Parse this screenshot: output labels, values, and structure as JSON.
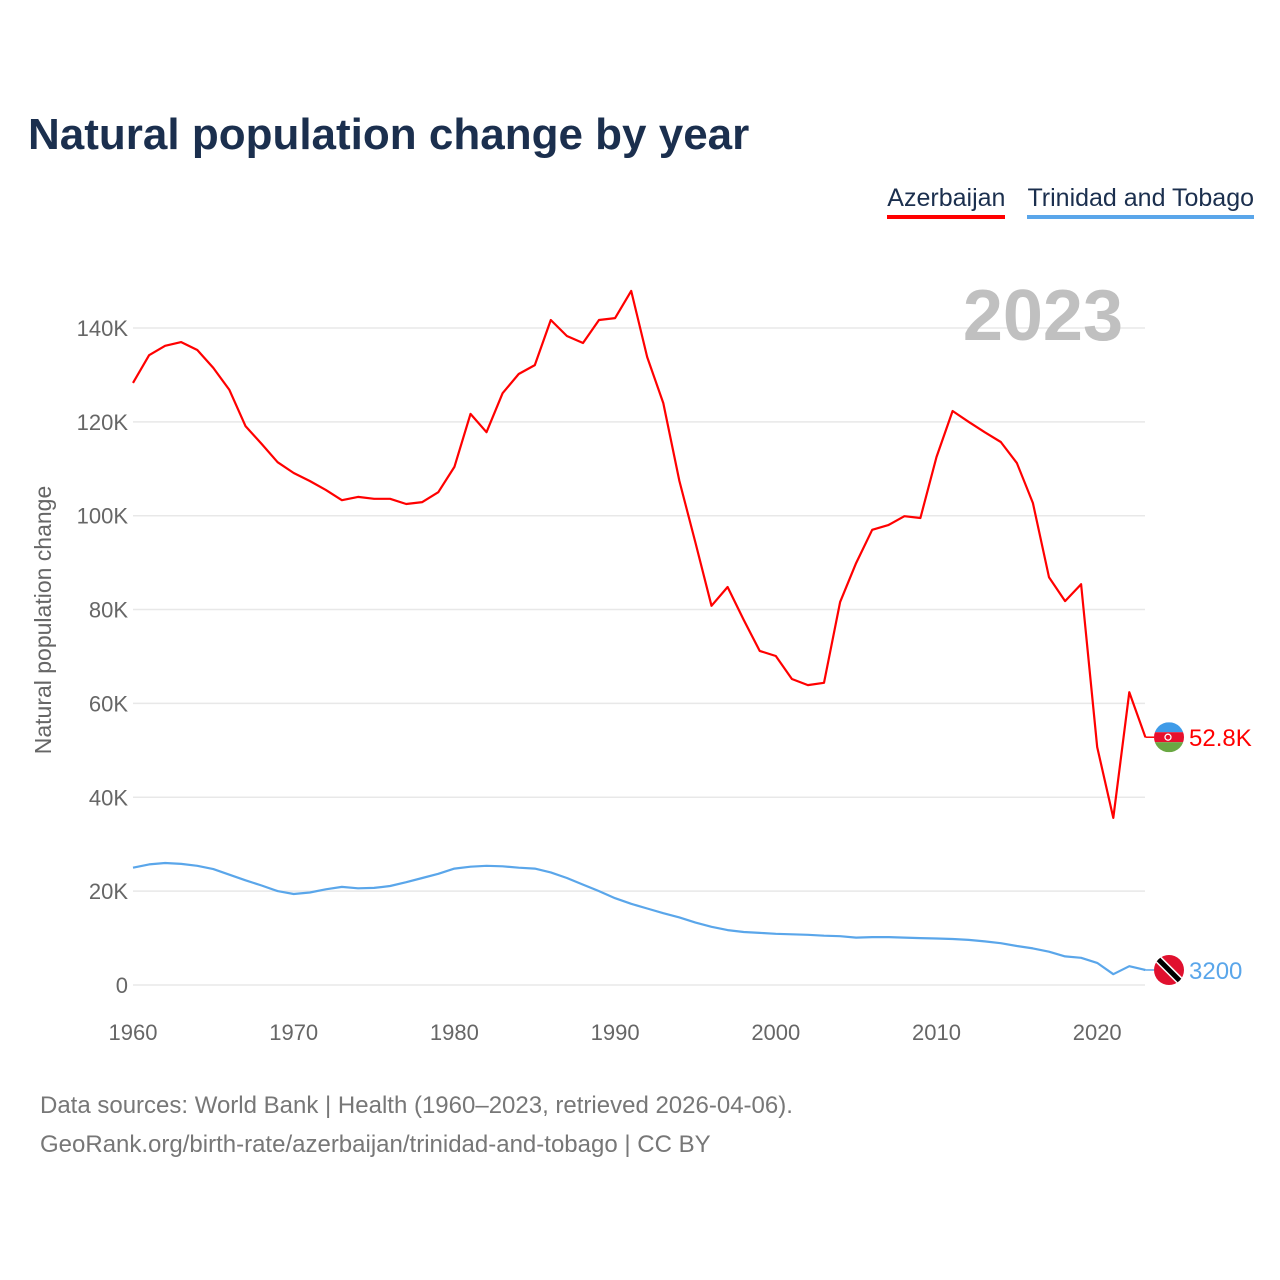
{
  "chart_data": {
    "type": "line",
    "title": "Natural population change by year",
    "ylabel": "Natural population change",
    "xlabel": "",
    "year_label": "2023",
    "xlim": [
      1960,
      2023
    ],
    "ylim": [
      0,
      150000
    ],
    "x_ticks": [
      1960,
      1970,
      1980,
      1990,
      2000,
      2010,
      2020
    ],
    "y_ticks": [
      0,
      20000,
      40000,
      60000,
      80000,
      100000,
      120000,
      140000
    ],
    "y_tick_labels": [
      "0",
      "20K",
      "40K",
      "60K",
      "80K",
      "100K",
      "120K",
      "140K"
    ],
    "grid": true,
    "legend_position": "top-right",
    "x_start": 1960,
    "series": [
      {
        "name": "Azerbaijan",
        "color": "#ff0000",
        "end_label": "52.8K",
        "flag": "azerbaijan-flag",
        "values_k": [
          128.3,
          134.2,
          136.2,
          137.0,
          135.3,
          131.5,
          126.8,
          119.1,
          115.3,
          111.4,
          109.1,
          107.4,
          105.5,
          103.3,
          104.0,
          103.6,
          103.6,
          102.5,
          102.9,
          105.0,
          110.4,
          121.7,
          117.8,
          126.1,
          130.2,
          132.1,
          141.7,
          138.3,
          136.8,
          141.7,
          142.1,
          147.9,
          133.8,
          124.0,
          107.4,
          94.2,
          80.8,
          84.8,
          77.8,
          71.2,
          70.1,
          65.2,
          63.9,
          64.4,
          81.6,
          89.9,
          97.0,
          98.0,
          99.9,
          99.5,
          112.5,
          122.3,
          120.0,
          117.8,
          115.7,
          111.2,
          102.7,
          86.9,
          81.8,
          85.4,
          50.7,
          35.6,
          62.4,
          52.8
        ]
      },
      {
        "name": "Trinidad and Tobago",
        "color": "#5aa6ea",
        "end_label": "3200",
        "flag": "trinidad-flag",
        "values_k": [
          25.0,
          25.7,
          26.0,
          25.8,
          25.4,
          24.7,
          23.5,
          22.3,
          21.2,
          20.0,
          19.4,
          19.7,
          20.4,
          20.9,
          20.6,
          20.7,
          21.1,
          21.9,
          22.8,
          23.7,
          24.8,
          25.2,
          25.4,
          25.3,
          25.0,
          24.8,
          24.0,
          22.8,
          21.4,
          20.0,
          18.5,
          17.3,
          16.3,
          15.3,
          14.4,
          13.3,
          12.4,
          11.7,
          11.3,
          11.1,
          10.9,
          10.8,
          10.7,
          10.5,
          10.4,
          10.1,
          10.2,
          10.2,
          10.1,
          10.0,
          9.9,
          9.8,
          9.6,
          9.3,
          8.9,
          8.3,
          7.8,
          7.1,
          6.1,
          5.8,
          4.7,
          2.3,
          4.0,
          3.2
        ]
      }
    ]
  },
  "footer": {
    "line1": "Data sources: World Bank | Health (1960–2023, retrieved 2026-04-06).",
    "line2": "GeoRank.org/birth-rate/azerbaijan/trinidad-and-tobago | CC BY"
  }
}
